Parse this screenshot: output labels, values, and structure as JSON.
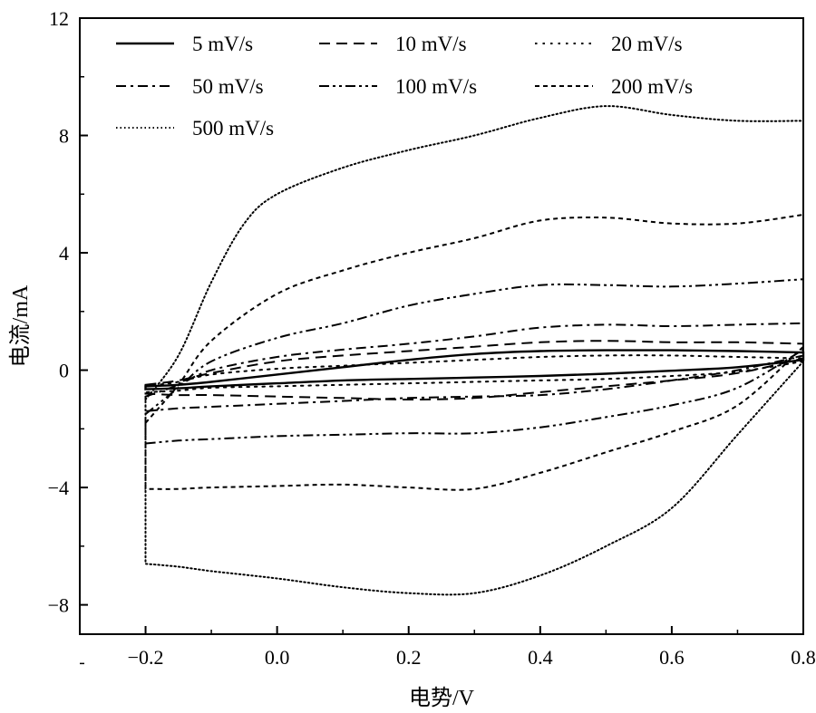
{
  "chart_data": {
    "type": "line",
    "title": "",
    "xlabel": "电势/V",
    "ylabel": "电流/mA",
    "xlim": [
      -0.3,
      0.8
    ],
    "ylim": [
      -9,
      12
    ],
    "xticks": [
      -0.2,
      0.0,
      0.2,
      0.4,
      0.6,
      0.8
    ],
    "xtick_labels": [
      "−0.2",
      "0.0",
      "0.2",
      "0.4",
      "0.6",
      "0.8"
    ],
    "yticks": [
      -8,
      -4,
      0,
      4,
      8,
      12
    ],
    "ytick_labels": [
      "−8",
      "−4",
      "0",
      "4",
      "8",
      "12"
    ],
    "grid": false,
    "legend_position": "top-left",
    "series": [
      {
        "name": "5 mV/s",
        "style": "solid",
        "upper": {
          "x": [
            -0.2,
            -0.15,
            -0.1,
            0.0,
            0.1,
            0.2,
            0.3,
            0.4,
            0.5,
            0.6,
            0.7,
            0.8
          ],
          "y": [
            -0.55,
            -0.5,
            -0.4,
            -0.15,
            0.1,
            0.35,
            0.55,
            0.65,
            0.68,
            0.68,
            0.65,
            0.6
          ]
        },
        "lower": {
          "x": [
            -0.2,
            -0.15,
            -0.1,
            0.0,
            0.1,
            0.2,
            0.3,
            0.4,
            0.5,
            0.6,
            0.7,
            0.8
          ],
          "y": [
            -0.65,
            -0.62,
            -0.55,
            -0.45,
            -0.35,
            -0.3,
            -0.25,
            -0.2,
            -0.12,
            -0.02,
            0.1,
            0.35
          ]
        }
      },
      {
        "name": "10 mV/s",
        "style": "dash",
        "upper": {
          "x": [
            -0.2,
            -0.15,
            -0.1,
            0.0,
            0.1,
            0.2,
            0.3,
            0.4,
            0.5,
            0.6,
            0.7,
            0.8
          ],
          "y": [
            -0.5,
            -0.35,
            -0.1,
            0.3,
            0.5,
            0.65,
            0.8,
            0.95,
            1.0,
            0.95,
            0.95,
            0.9
          ]
        },
        "lower": {
          "x": [
            -0.2,
            -0.15,
            -0.1,
            0.0,
            0.1,
            0.2,
            0.3,
            0.4,
            0.5,
            0.6,
            0.7,
            0.8
          ],
          "y": [
            -0.8,
            -0.85,
            -0.85,
            -0.9,
            -0.95,
            -1.0,
            -0.95,
            -0.75,
            -0.55,
            -0.35,
            -0.1,
            0.4
          ]
        }
      },
      {
        "name": "20 mV/s",
        "style": "dot",
        "upper": {
          "x": [
            -0.2,
            -0.15,
            -0.1,
            0.0,
            0.1,
            0.2,
            0.3,
            0.4,
            0.5,
            0.6,
            0.7,
            0.8
          ],
          "y": [
            -0.55,
            -0.4,
            -0.15,
            0.05,
            0.15,
            0.25,
            0.35,
            0.45,
            0.5,
            0.5,
            0.45,
            0.4
          ]
        },
        "lower": {
          "x": [
            -0.2,
            -0.15,
            -0.1,
            0.0,
            0.1,
            0.2,
            0.3,
            0.4,
            0.5,
            0.6,
            0.7,
            0.8
          ],
          "y": [
            -0.75,
            -0.7,
            -0.6,
            -0.55,
            -0.5,
            -0.45,
            -0.4,
            -0.35,
            -0.3,
            -0.2,
            -0.05,
            0.3
          ]
        }
      },
      {
        "name": "50 mV/s",
        "style": "dashdot",
        "upper": {
          "x": [
            -0.2,
            -0.15,
            -0.1,
            0.0,
            0.1,
            0.2,
            0.3,
            0.4,
            0.5,
            0.6,
            0.7,
            0.8
          ],
          "y": [
            -0.9,
            -0.5,
            0.0,
            0.45,
            0.7,
            0.9,
            1.15,
            1.45,
            1.55,
            1.5,
            1.55,
            1.6
          ]
        },
        "lower": {
          "x": [
            -0.2,
            -0.15,
            -0.1,
            0.0,
            0.1,
            0.2,
            0.3,
            0.4,
            0.5,
            0.6,
            0.7,
            0.8
          ],
          "y": [
            -1.4,
            -1.3,
            -1.25,
            -1.15,
            -1.05,
            -0.95,
            -0.9,
            -0.85,
            -0.65,
            -0.35,
            0.0,
            0.5
          ]
        }
      },
      {
        "name": "100 mV/s",
        "style": "dashdotdot",
        "upper": {
          "x": [
            -0.2,
            -0.15,
            -0.1,
            0.0,
            0.1,
            0.2,
            0.3,
            0.4,
            0.5,
            0.6,
            0.7,
            0.8
          ],
          "y": [
            -1.5,
            -0.6,
            0.3,
            1.1,
            1.6,
            2.2,
            2.6,
            2.9,
            2.9,
            2.85,
            2.95,
            3.1
          ]
        },
        "lower": {
          "x": [
            -0.2,
            -0.15,
            -0.1,
            0.0,
            0.1,
            0.2,
            0.3,
            0.4,
            0.5,
            0.6,
            0.7,
            0.8
          ],
          "y": [
            -2.5,
            -2.4,
            -2.35,
            -2.25,
            -2.2,
            -2.15,
            -2.15,
            -1.95,
            -1.6,
            -1.2,
            -0.6,
            0.7
          ]
        }
      },
      {
        "name": "200 mV/s",
        "style": "shortdash",
        "upper": {
          "x": [
            -0.2,
            -0.15,
            -0.1,
            0.0,
            0.1,
            0.2,
            0.3,
            0.4,
            0.5,
            0.6,
            0.7,
            0.8
          ],
          "y": [
            -1.8,
            -0.5,
            1.0,
            2.6,
            3.4,
            4.0,
            4.5,
            5.1,
            5.2,
            5.0,
            5.0,
            5.3
          ]
        },
        "lower": {
          "x": [
            -0.2,
            -0.15,
            -0.1,
            0.0,
            0.1,
            0.2,
            0.3,
            0.4,
            0.5,
            0.6,
            0.7,
            0.8
          ],
          "y": [
            -4.05,
            -4.05,
            -4.0,
            -3.95,
            -3.9,
            -4.0,
            -4.05,
            -3.5,
            -2.8,
            -2.1,
            -1.2,
            0.8
          ]
        }
      },
      {
        "name": "500 mV/s",
        "style": "finedot",
        "upper": {
          "x": [
            -0.2,
            -0.15,
            -0.1,
            -0.05,
            0.0,
            0.1,
            0.2,
            0.3,
            0.4,
            0.5,
            0.6,
            0.7,
            0.8
          ],
          "y": [
            -1.0,
            0.5,
            3.0,
            5.0,
            6.0,
            6.9,
            7.5,
            8.0,
            8.6,
            9.0,
            8.7,
            8.5,
            8.5
          ]
        },
        "lower": {
          "x": [
            -0.2,
            -0.15,
            -0.1,
            0.0,
            0.1,
            0.2,
            0.3,
            0.4,
            0.5,
            0.6,
            0.7,
            0.8
          ],
          "y": [
            -6.6,
            -6.7,
            -6.85,
            -7.1,
            -7.4,
            -7.6,
            -7.6,
            -7.0,
            -6.0,
            -4.7,
            -2.2,
            0.3
          ]
        }
      }
    ]
  },
  "colors": {
    "line": "#000000",
    "background": "#ffffff"
  }
}
